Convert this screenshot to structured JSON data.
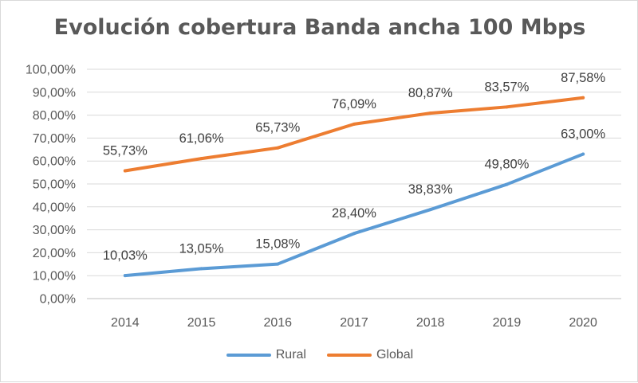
{
  "chart_data": {
    "type": "line",
    "title": "Evolución cobertura Banda ancha 100 Mbps",
    "xlabel": "",
    "ylabel": "",
    "categories": [
      "2014",
      "2015",
      "2016",
      "2017",
      "2018",
      "2019",
      "2020"
    ],
    "ylim": [
      0,
      100
    ],
    "y_ticks": [
      "0,00%",
      "10,00%",
      "20,00%",
      "30,00%",
      "40,00%",
      "50,00%",
      "60,00%",
      "70,00%",
      "80,00%",
      "90,00%",
      "100,00%"
    ],
    "grid": true,
    "legend_position": "bottom",
    "series": [
      {
        "name": "Rural",
        "color": "#5b9bd5",
        "values": [
          10.03,
          13.05,
          15.08,
          28.4,
          38.83,
          49.8,
          63.0
        ],
        "labels": [
          "10,03%",
          "13,05%",
          "15,08%",
          "28,40%",
          "38,83%",
          "49,80%",
          "63,00%"
        ]
      },
      {
        "name": "Global",
        "color": "#ed7d31",
        "values": [
          55.73,
          61.06,
          65.73,
          76.09,
          80.87,
          83.57,
          87.58
        ],
        "labels": [
          "55,73%",
          "61,06%",
          "65,73%",
          "76,09%",
          "80,87%",
          "83,57%",
          "87,58%"
        ]
      }
    ]
  }
}
